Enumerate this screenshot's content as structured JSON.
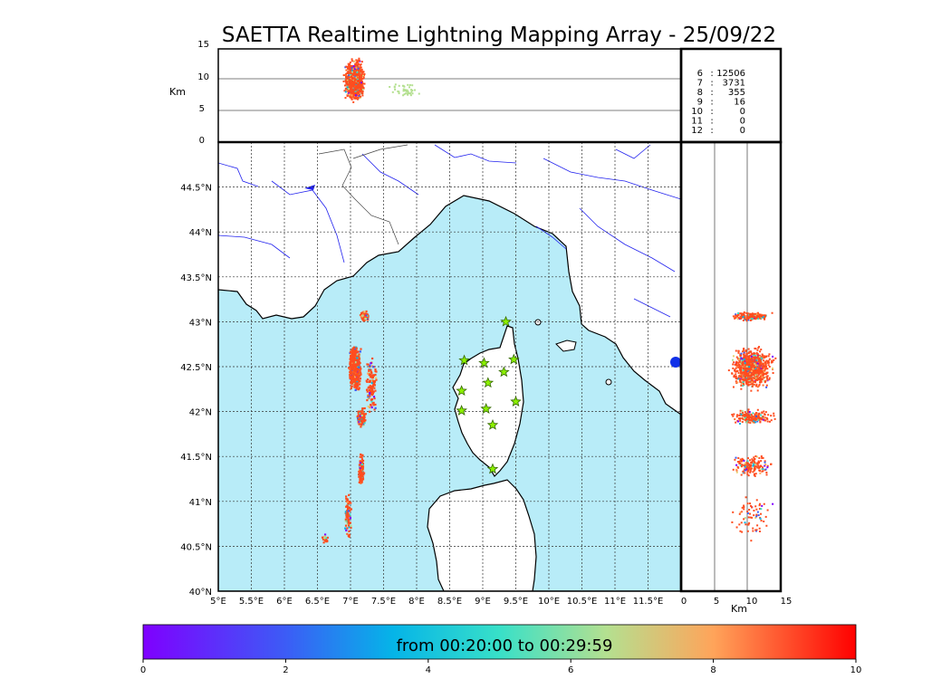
{
  "title": "SAETTA Realtime Lightning Mapping Array - 25/09/22",
  "top_panel": {
    "ylabel": "Km",
    "yticks": [
      "15",
      "10",
      "5",
      "0"
    ]
  },
  "side_panel": {
    "xlabel": "Km",
    "xticks": [
      "0",
      "5",
      "10",
      "15"
    ]
  },
  "map": {
    "lon_ticks": [
      "5°E",
      "5.5°E",
      "6°E",
      "6.5°E",
      "7°E",
      "7.5°E",
      "8°E",
      "8.5°E",
      "9°E",
      "9.5°E",
      "10°E",
      "10.5°E",
      "11°E",
      "11.5°E"
    ],
    "lat_ticks": [
      "44.5°N",
      "44°N",
      "43.5°N",
      "43°N",
      "42.5°N",
      "42°N",
      "41.5°N",
      "41°N",
      "40.5°N",
      "40°N"
    ],
    "sea_color": "#b8ecf8",
    "coast_color": "#000000",
    "river_color": "#2222ee"
  },
  "station_counts": {
    "rows": [
      {
        "label": "6",
        "value": "12506",
        "highlight": true
      },
      {
        "label": "7",
        "value": "3731",
        "highlight": false
      },
      {
        "label": "8",
        "value": "355",
        "highlight": false
      },
      {
        "label": "9",
        "value": "16",
        "highlight": false
      },
      {
        "label": "10",
        "value": "0",
        "highlight": false
      },
      {
        "label": "11",
        "value": "0",
        "highlight": false
      },
      {
        "label": "12",
        "value": "0",
        "highlight": false
      }
    ],
    "separator": ":"
  },
  "colorbar": {
    "label": "from 00:20:00 to 00:29:59",
    "ticks": [
      "0",
      "2",
      "4",
      "6",
      "8",
      "10"
    ]
  }
}
